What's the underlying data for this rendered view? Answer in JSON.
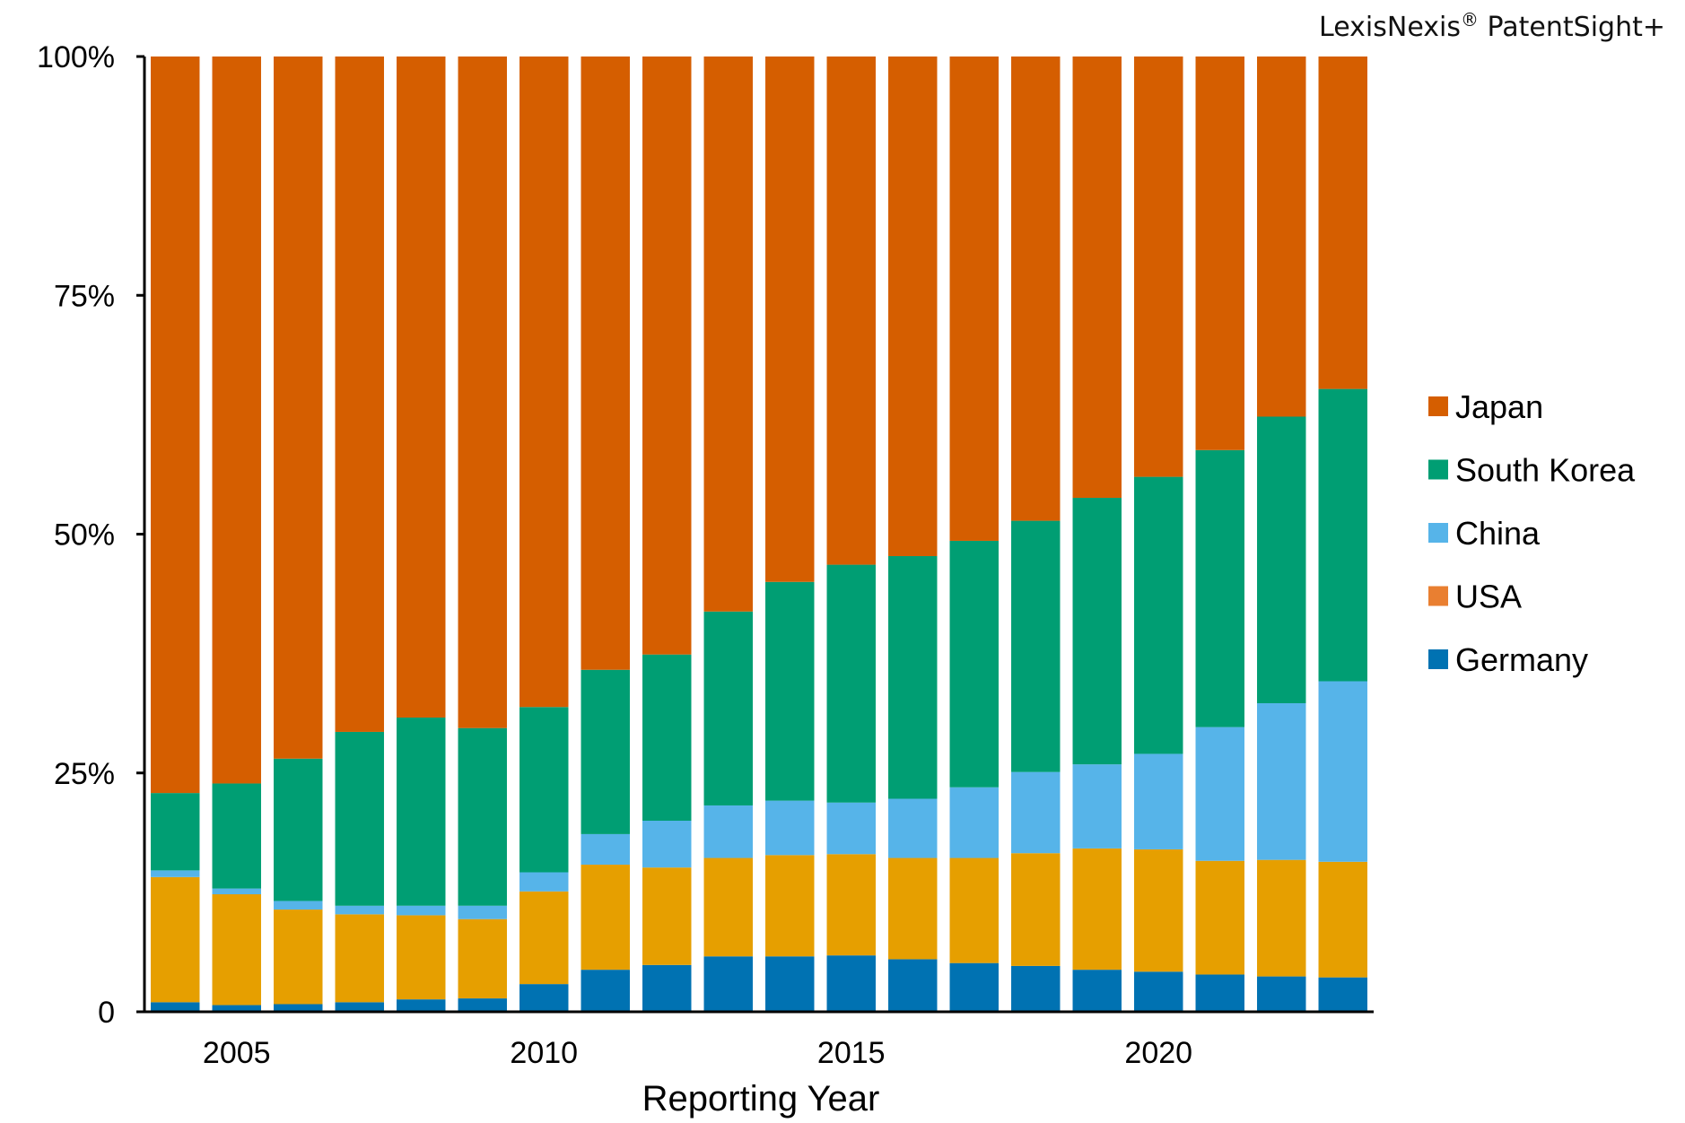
{
  "brand": {
    "name": "LexisNexis",
    "mark": "®",
    "product": "PatentSight+"
  },
  "chart_data": {
    "type": "bar",
    "stacked": true,
    "normalized": true,
    "title": "",
    "xlabel": "Reporting Year",
    "ylabel": "",
    "x": [
      2004,
      2005,
      2006,
      2007,
      2008,
      2009,
      2010,
      2011,
      2012,
      2013,
      2014,
      2015,
      2016,
      2017,
      2018,
      2019,
      2020,
      2021,
      2022,
      2023
    ],
    "x_ticks": [
      "2005",
      "2010",
      "2015",
      "2020"
    ],
    "y_ticks": [
      "0",
      "25%",
      "50%",
      "75%",
      "100%"
    ],
    "ylim": [
      0,
      100
    ],
    "grid": false,
    "legend_position": "right",
    "series": [
      {
        "name": "Germany",
        "color": "#0072b2",
        "values": [
          1.0,
          0.7,
          0.8,
          1.0,
          1.3,
          1.4,
          2.9,
          4.4,
          4.9,
          5.8,
          5.8,
          5.9,
          5.5,
          5.1,
          4.8,
          4.4,
          4.2,
          3.9,
          3.7,
          3.6
        ]
      },
      {
        "name": "USA",
        "color": "#e69f00",
        "values": [
          13.1,
          11.6,
          9.9,
          9.2,
          8.8,
          8.3,
          9.7,
          11.0,
          10.2,
          10.3,
          10.6,
          10.6,
          10.6,
          11.0,
          11.8,
          12.7,
          12.8,
          11.9,
          12.2,
          12.1
        ]
      },
      {
        "name": "China",
        "color": "#56b4e9",
        "values": [
          0.7,
          0.6,
          0.9,
          0.9,
          1.0,
          1.4,
          2.0,
          3.2,
          4.9,
          5.5,
          5.7,
          5.4,
          6.2,
          7.4,
          8.5,
          8.8,
          10.0,
          14.0,
          16.4,
          18.9
        ]
      },
      {
        "name": "South Korea",
        "color": "#009e73",
        "values": [
          8.1,
          11.0,
          14.9,
          18.2,
          19.7,
          18.6,
          17.3,
          17.2,
          17.4,
          20.3,
          22.9,
          24.9,
          25.4,
          25.8,
          26.3,
          27.9,
          29.0,
          29.0,
          30.0,
          30.6
        ]
      },
      {
        "name": "Japan",
        "color": "#d55e00",
        "values": [
          77.1,
          76.1,
          73.5,
          70.7,
          69.2,
          70.3,
          68.1,
          64.2,
          62.6,
          58.1,
          55.0,
          53.2,
          52.3,
          50.7,
          48.6,
          46.2,
          44.0,
          41.2,
          37.7,
          34.8
        ]
      }
    ],
    "legend_order": [
      "Japan",
      "South Korea",
      "China",
      "USA",
      "Germany"
    ],
    "legend_colors": {
      "Japan": "#d55e00",
      "South Korea": "#009e73",
      "China": "#56b4e9",
      "USA": "#e97f31",
      "Germany": "#0072b2"
    }
  }
}
